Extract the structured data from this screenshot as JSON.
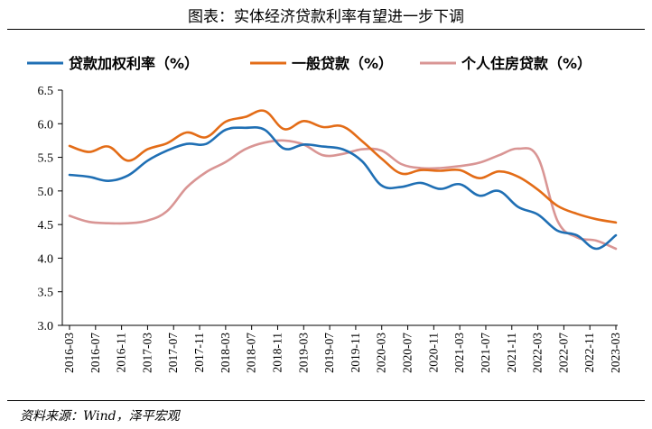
{
  "figure": {
    "title": "图表：实体经济贷款利率有望进一步下调",
    "source": "资料来源：Wind，泽平宏观"
  },
  "chart_data": {
    "type": "line",
    "ylim": [
      3.0,
      6.5
    ],
    "yticks": [
      "6.5",
      "6.0",
      "5.5",
      "5.0",
      "4.5",
      "4.0",
      "3.5",
      "3.0"
    ],
    "x": [
      "2016-03",
      "2016-06",
      "2016-09",
      "2016-12",
      "2017-03",
      "2017-06",
      "2017-09",
      "2017-12",
      "2018-03",
      "2018-06",
      "2018-09",
      "2018-12",
      "2019-03",
      "2019-06",
      "2019-09",
      "2019-12",
      "2020-03",
      "2020-06",
      "2020-09",
      "2020-12",
      "2021-03",
      "2021-06",
      "2021-09",
      "2021-12",
      "2022-03",
      "2022-06",
      "2022-09",
      "2022-12",
      "2023-03"
    ],
    "xticks": [
      "2016-03",
      "2016-07",
      "2016-11",
      "2017-03",
      "2017-07",
      "2017-11",
      "2018-03",
      "2018-07",
      "2018-11",
      "2019-03",
      "2019-07",
      "2019-11",
      "2020-03",
      "2020-07",
      "2020-11",
      "2021-03",
      "2021-07",
      "2021-11",
      "2022-03",
      "2022-07",
      "2022-11",
      "2023-03"
    ],
    "series": [
      {
        "name": "贷款加权利率（%）",
        "color": "#1f6fb4",
        "values": [
          5.24,
          5.21,
          5.15,
          5.23,
          5.45,
          5.6,
          5.7,
          5.7,
          5.91,
          5.94,
          5.91,
          5.63,
          5.69,
          5.66,
          5.62,
          5.44,
          5.08,
          5.06,
          5.12,
          5.03,
          5.1,
          4.93,
          5.0,
          4.76,
          4.65,
          4.41,
          4.34,
          4.14,
          4.34
        ]
      },
      {
        "name": "一般贷款（%）",
        "color": "#e36c17",
        "values": [
          5.67,
          5.58,
          5.66,
          5.45,
          5.62,
          5.71,
          5.87,
          5.8,
          6.03,
          6.1,
          6.19,
          5.92,
          6.04,
          5.95,
          5.96,
          5.74,
          5.48,
          5.26,
          5.31,
          5.3,
          5.31,
          5.19,
          5.29,
          5.21,
          5.02,
          4.78,
          4.66,
          4.58,
          4.53
        ]
      },
      {
        "name": "个人住房贷款（%）",
        "color": "#d99594",
        "values": [
          4.63,
          4.54,
          4.52,
          4.52,
          4.56,
          4.7,
          5.05,
          5.28,
          5.43,
          5.62,
          5.72,
          5.75,
          5.69,
          5.53,
          5.55,
          5.62,
          5.6,
          5.4,
          5.34,
          5.34,
          5.37,
          5.42,
          5.53,
          5.63,
          5.5,
          4.56,
          4.31,
          4.26,
          4.14
        ]
      }
    ],
    "legend": "top",
    "grid": false
  }
}
